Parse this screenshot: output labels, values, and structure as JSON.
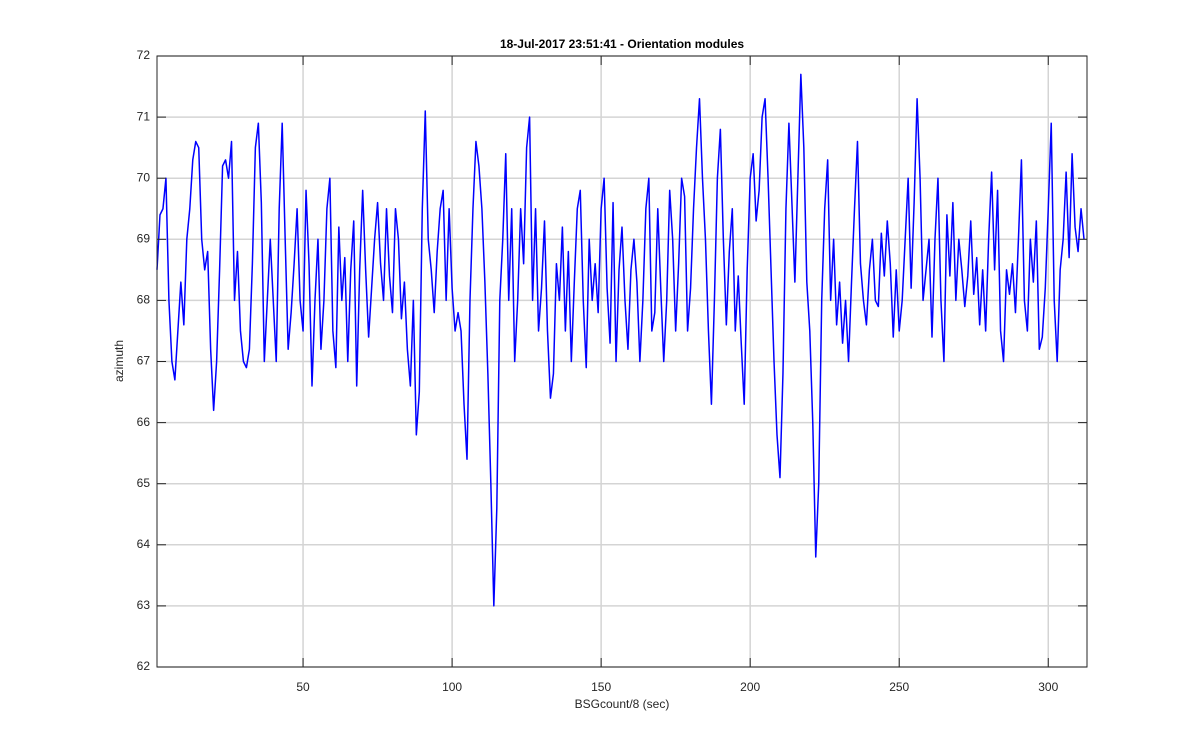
{
  "chart_data": {
    "type": "line",
    "title": "18-Jul-2017 23:51:41 - Orientation modules",
    "x_label": "BSGcount/8 (sec)",
    "y_label": "azimuth",
    "xlim": [
      1,
      313
    ],
    "ylim": [
      62,
      72
    ],
    "xticks": [
      50,
      100,
      150,
      200,
      250,
      300
    ],
    "yticks": [
      62,
      63,
      64,
      65,
      66,
      67,
      68,
      69,
      70,
      71,
      72
    ],
    "grid": true,
    "x": [
      1,
      2,
      3,
      4,
      5,
      6,
      7,
      8,
      9,
      10,
      11,
      12,
      13,
      14,
      15,
      16,
      17,
      18,
      19,
      20,
      21,
      22,
      23,
      24,
      25,
      26,
      27,
      28,
      29,
      30,
      31,
      32,
      33,
      34,
      35,
      36,
      37,
      38,
      39,
      40,
      41,
      42,
      43,
      44,
      45,
      46,
      47,
      48,
      49,
      50,
      51,
      52,
      53,
      54,
      55,
      56,
      57,
      58,
      59,
      60,
      61,
      62,
      63,
      64,
      65,
      66,
      67,
      68,
      69,
      70,
      71,
      72,
      73,
      74,
      75,
      76,
      77,
      78,
      79,
      80,
      81,
      82,
      83,
      84,
      85,
      86,
      87,
      88,
      89,
      90,
      91,
      92,
      93,
      94,
      95,
      96,
      97,
      98,
      99,
      100,
      101,
      102,
      103,
      104,
      105,
      106,
      107,
      108,
      109,
      110,
      111,
      112,
      113,
      114,
      115,
      116,
      117,
      118,
      119,
      120,
      121,
      122,
      123,
      124,
      125,
      126,
      127,
      128,
      129,
      130,
      131,
      132,
      133,
      134,
      135,
      136,
      137,
      138,
      139,
      140,
      141,
      142,
      143,
      144,
      145,
      146,
      147,
      148,
      149,
      150,
      151,
      152,
      153,
      154,
      155,
      156,
      157,
      158,
      159,
      160,
      161,
      162,
      163,
      164,
      165,
      166,
      167,
      168,
      169,
      170,
      171,
      172,
      173,
      174,
      175,
      176,
      177,
      178,
      179,
      180,
      181,
      182,
      183,
      184,
      185,
      186,
      187,
      188,
      189,
      190,
      191,
      192,
      193,
      194,
      195,
      196,
      197,
      198,
      199,
      200,
      201,
      202,
      203,
      204,
      205,
      206,
      207,
      208,
      209,
      210,
      211,
      212,
      213,
      214,
      215,
      216,
      217,
      218,
      219,
      220,
      221,
      222,
      223,
      224,
      225,
      226,
      227,
      228,
      229,
      230,
      231,
      232,
      233,
      234,
      235,
      236,
      237,
      238,
      239,
      240,
      241,
      242,
      243,
      244,
      245,
      246,
      247,
      248,
      249,
      250,
      251,
      252,
      253,
      254,
      255,
      256,
      257,
      258,
      259,
      260,
      261,
      262,
      263,
      264,
      265,
      266,
      267,
      268,
      269,
      270,
      271,
      272,
      273,
      274,
      275,
      276,
      277,
      278,
      279,
      280,
      281,
      282,
      283,
      284,
      285,
      286,
      287,
      288,
      289,
      290,
      291,
      292,
      293,
      294,
      295,
      296,
      297,
      298,
      299,
      300,
      301,
      302,
      303,
      304,
      305,
      306,
      307,
      308,
      309,
      310,
      311,
      312
    ],
    "series": [
      {
        "color": "#0000ff",
        "values": [
          68.5,
          69.4,
          69.5,
          70.0,
          68.0,
          67.0,
          66.7,
          67.5,
          68.3,
          67.6,
          69.0,
          69.5,
          70.3,
          70.6,
          70.5,
          69.0,
          68.5,
          68.8,
          67.2,
          66.2,
          67.0,
          68.5,
          70.2,
          70.3,
          70.0,
          70.6,
          68.0,
          68.8,
          67.5,
          67.0,
          66.9,
          67.2,
          68.6,
          70.5,
          70.9,
          69.6,
          67.0,
          68.0,
          69.0,
          68.0,
          67.0,
          69.5,
          70.9,
          69.0,
          67.2,
          67.8,
          68.6,
          69.5,
          68.0,
          67.5,
          69.8,
          68.6,
          66.6,
          68.0,
          69.0,
          67.2,
          68.0,
          69.5,
          70.0,
          67.5,
          66.9,
          69.2,
          68.0,
          68.7,
          67.0,
          68.5,
          69.3,
          66.6,
          68.5,
          69.8,
          68.5,
          67.4,
          68.2,
          69.0,
          69.6,
          68.6,
          68.0,
          69.5,
          68.4,
          67.8,
          69.5,
          69.0,
          67.7,
          68.3,
          67.2,
          66.6,
          68.0,
          65.8,
          66.5,
          69.5,
          71.1,
          69.0,
          68.5,
          67.8,
          68.8,
          69.5,
          69.8,
          68.0,
          69.5,
          68.2,
          67.5,
          67.8,
          67.5,
          66.3,
          65.4,
          68.0,
          69.5,
          70.6,
          70.2,
          69.5,
          68.3,
          66.8,
          65.0,
          63.0,
          64.6,
          68.0,
          69.0,
          70.4,
          68.0,
          69.5,
          67.0,
          68.0,
          69.5,
          68.6,
          70.5,
          71.0,
          68.0,
          69.5,
          67.5,
          68.2,
          69.3,
          67.5,
          66.4,
          66.8,
          68.6,
          68.0,
          69.2,
          67.5,
          68.8,
          67.0,
          68.3,
          69.5,
          69.8,
          68.0,
          66.9,
          69.0,
          68.0,
          68.6,
          67.8,
          69.5,
          70.0,
          68.2,
          67.3,
          69.6,
          67.0,
          68.5,
          69.2,
          68.0,
          67.2,
          68.5,
          69.0,
          68.3,
          67.0,
          68.0,
          69.5,
          70.0,
          67.5,
          67.8,
          69.5,
          68.2,
          67.0,
          68.0,
          69.8,
          69.0,
          67.5,
          68.6,
          70.0,
          69.7,
          67.5,
          68.2,
          69.5,
          70.5,
          71.3,
          70.0,
          69.0,
          67.5,
          66.3,
          68.0,
          70.0,
          70.8,
          69.0,
          67.6,
          68.8,
          69.5,
          67.5,
          68.4,
          67.3,
          66.3,
          68.5,
          70.0,
          70.4,
          69.3,
          69.8,
          71.0,
          71.3,
          70.0,
          68.5,
          67.0,
          65.8,
          65.1,
          66.8,
          69.5,
          70.9,
          69.6,
          68.3,
          70.0,
          71.7,
          70.5,
          68.3,
          67.5,
          66.0,
          63.8,
          65.0,
          68.0,
          69.5,
          70.3,
          68.0,
          69.0,
          67.6,
          68.3,
          67.3,
          68.0,
          67.0,
          68.3,
          69.5,
          70.6,
          68.6,
          68.0,
          67.6,
          68.5,
          69.0,
          68.0,
          67.9,
          69.1,
          68.4,
          69.3,
          68.6,
          67.4,
          68.5,
          67.5,
          68.0,
          69.0,
          70.0,
          68.2,
          69.6,
          71.3,
          70.0,
          68.0,
          68.5,
          69.0,
          67.4,
          69.0,
          70.0,
          68.0,
          67.0,
          69.4,
          68.4,
          69.6,
          68.0,
          69.0,
          68.5,
          67.9,
          68.4,
          69.3,
          68.1,
          68.7,
          67.6,
          68.5,
          67.5,
          69.0,
          70.1,
          68.5,
          69.8,
          67.5,
          67.0,
          68.5,
          68.1,
          68.6,
          67.8,
          69.0,
          70.3,
          68.0,
          67.5,
          69.0,
          68.3,
          69.3,
          67.2,
          67.4,
          68.2,
          69.5,
          70.9,
          68.0,
          67.0,
          68.5,
          69.0,
          70.1,
          68.7,
          70.4,
          69.2,
          68.8,
          69.5,
          69.0
        ]
      }
    ]
  }
}
